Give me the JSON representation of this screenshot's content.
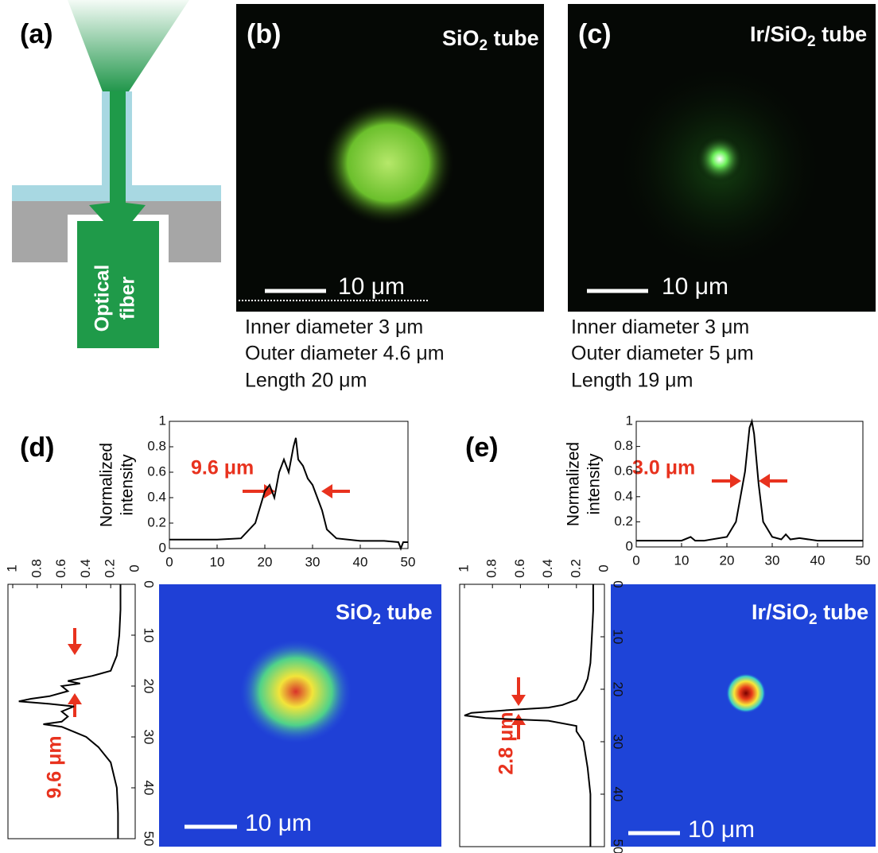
{
  "panels": {
    "a": {
      "label": "(a)",
      "fiber_label": [
        "Optical",
        "fiber"
      ]
    },
    "b": {
      "label": "(b)",
      "title": [
        "SiO",
        "2",
        " tube"
      ],
      "scale": "10 μm",
      "specs": [
        "Inner diameter 3 μm",
        "Outer diameter 4.6 μm",
        "Length 20 μm"
      ]
    },
    "c": {
      "label": "(c)",
      "title": [
        "Ir/SiO",
        "2",
        " tube"
      ],
      "scale": "10 μm",
      "specs": [
        "Inner diameter 3 μm",
        "Outer diameter 5 μm",
        "Length 19 μm"
      ]
    },
    "d": {
      "label": "(d)",
      "title": [
        "SiO",
        "2",
        " tube"
      ],
      "scale": "10 μm",
      "h_annotation": "9.6 μm",
      "v_annotation": "9.6 μm",
      "horizontal_profile": {
        "type": "line",
        "ylabel": [
          "Normalized",
          "intensity"
        ],
        "x": [
          0,
          5,
          10,
          15,
          18,
          20,
          21,
          22,
          23,
          24,
          25,
          26,
          26.5,
          27,
          28,
          29,
          30,
          31,
          32,
          33,
          35,
          40,
          45,
          48,
          48.5,
          49,
          50
        ],
        "values": [
          0.07,
          0.07,
          0.07,
          0.08,
          0.2,
          0.45,
          0.5,
          0.4,
          0.6,
          0.7,
          0.6,
          0.8,
          0.87,
          0.7,
          0.65,
          0.55,
          0.5,
          0.4,
          0.3,
          0.15,
          0.08,
          0.06,
          0.06,
          0.05,
          0,
          0.05,
          0.05
        ],
        "xlim": [
          0,
          50
        ],
        "ylim": [
          0,
          1
        ],
        "xticks": [
          0,
          10,
          20,
          30,
          40,
          50
        ],
        "yticks": [
          0,
          0.2,
          0.4,
          0.6,
          0.8,
          1
        ]
      },
      "vertical_profile": {
        "type": "line",
        "positions": [
          0,
          5,
          10,
          14,
          17,
          18,
          19,
          19.5,
          20,
          21,
          22,
          22.5,
          23,
          23.5,
          24,
          25,
          26,
          27,
          27.5,
          28,
          29,
          30,
          32,
          35,
          40,
          45,
          50
        ],
        "values": [
          0.12,
          0.12,
          0.13,
          0.15,
          0.2,
          0.35,
          0.55,
          0.45,
          0.6,
          0.55,
          0.7,
          0.85,
          0.95,
          0.7,
          0.5,
          0.6,
          0.55,
          0.6,
          0.75,
          0.6,
          0.5,
          0.4,
          0.3,
          0.2,
          0.15,
          0.14,
          0.14
        ],
        "poslim": [
          0,
          50
        ],
        "vlim": [
          0,
          1
        ],
        "posticks": [
          0,
          10,
          20,
          30,
          40,
          50
        ],
        "vticks": [
          0,
          0.2,
          0.4,
          0.6,
          0.8,
          1
        ]
      }
    },
    "e": {
      "label": "(e)",
      "title": [
        "Ir/SiO",
        "2",
        " tube"
      ],
      "scale": "10 μm",
      "h_annotation": "3.0 μm",
      "v_annotation": "2.8 μm",
      "horizontal_profile": {
        "type": "line",
        "ylabel": [
          "Normalized",
          "intensity"
        ],
        "x": [
          0,
          5,
          10,
          12,
          13,
          15,
          20,
          22,
          23,
          24,
          25,
          25.5,
          26,
          27,
          28,
          30,
          32,
          33,
          34,
          36,
          40,
          45,
          50
        ],
        "values": [
          0.05,
          0.05,
          0.05,
          0.08,
          0.05,
          0.05,
          0.08,
          0.2,
          0.4,
          0.6,
          0.95,
          1,
          0.9,
          0.5,
          0.2,
          0.08,
          0.06,
          0.1,
          0.06,
          0.07,
          0.05,
          0.05,
          0.05
        ],
        "xlim": [
          0,
          50
        ],
        "ylim": [
          0,
          1
        ],
        "xticks": [
          0,
          10,
          20,
          30,
          40,
          50
        ],
        "yticks": [
          0,
          0.2,
          0.4,
          0.6,
          0.8,
          1
        ]
      },
      "vertical_profile": {
        "type": "line",
        "positions": [
          0,
          5,
          10,
          15,
          18,
          20,
          22,
          23,
          23.5,
          24,
          24.5,
          25,
          25.5,
          26,
          27,
          28,
          30,
          35,
          40,
          45,
          50
        ],
        "values": [
          0.08,
          0.08,
          0.09,
          0.1,
          0.12,
          0.15,
          0.2,
          0.3,
          0.4,
          0.7,
          0.95,
          1,
          0.85,
          0.4,
          0.2,
          0.2,
          0.15,
          0.12,
          0.1,
          0.1,
          0.1
        ],
        "poslim": [
          0,
          50
        ],
        "vlim": [
          0,
          1
        ],
        "posticks": [
          0,
          10,
          20,
          30,
          40,
          50
        ],
        "vticks": [
          0,
          0.2,
          0.4,
          0.6,
          0.8,
          1
        ]
      }
    }
  }
}
